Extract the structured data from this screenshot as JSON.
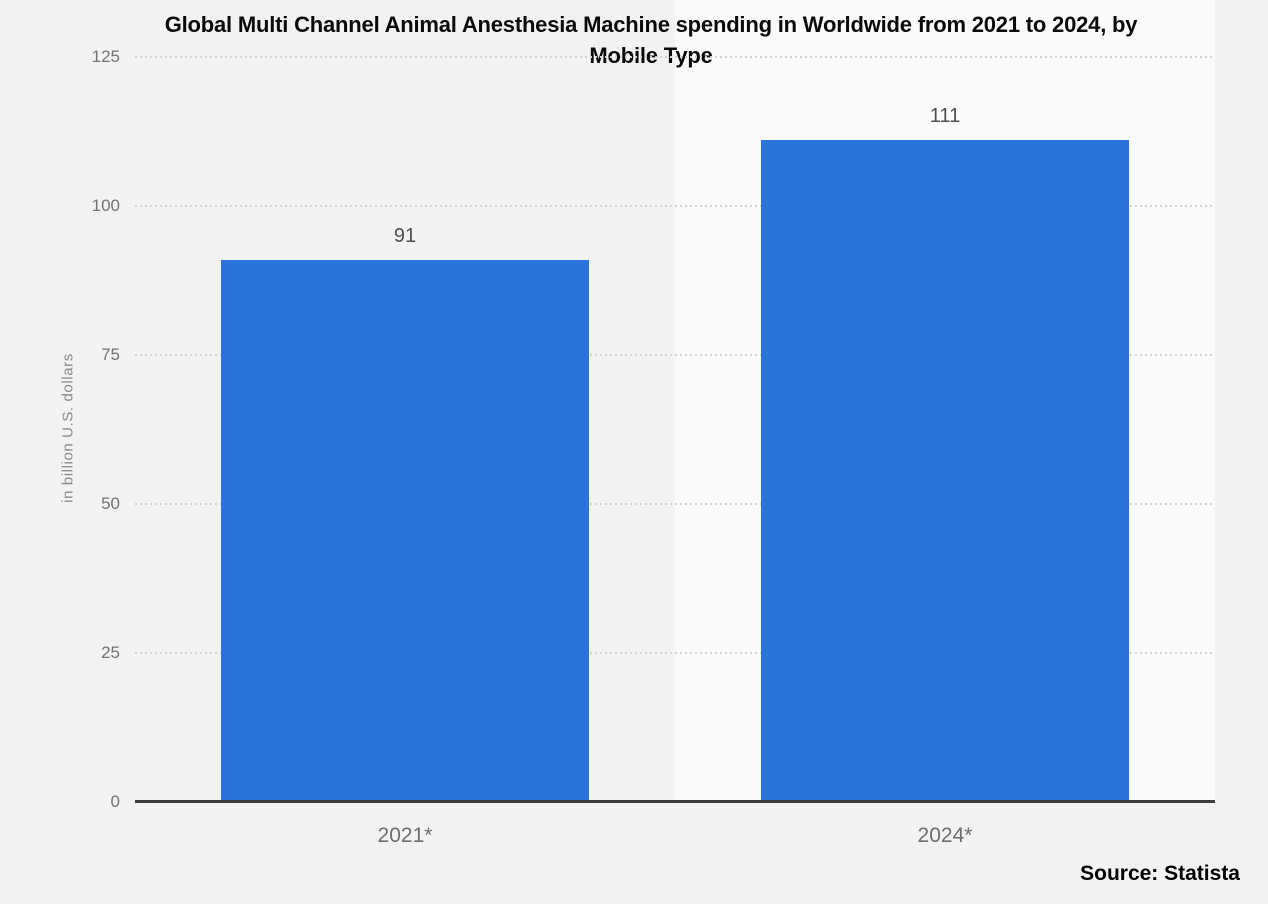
{
  "title": "Global Multi Channel Animal Anesthesia Machine spending in Worldwide from 2021 to 2024, by Mobile Type",
  "source_label": "Source: Statista",
  "colors": {
    "page_background": "#f2f2f2",
    "highlight_band": "#fafafa",
    "bar": "#2a73d8",
    "baseline": "#3c3c3c",
    "gridline": "#d2d2d2"
  },
  "chart_data": {
    "type": "bar",
    "title": "Global Multi Channel Animal Anesthesia Machine spending in Worldwide from 2021 to 2024, by Mobile Type",
    "categories": [
      "2021*",
      "2024*"
    ],
    "values": [
      91,
      111
    ],
    "value_labels": [
      "91",
      "111"
    ],
    "xlabel": "",
    "ylabel": "in billion U.S. dollars",
    "ylim": [
      0,
      125
    ],
    "yticks": [
      0,
      25,
      50,
      75,
      100,
      125
    ],
    "grid": true,
    "gridline_style": "dotted",
    "legend": "none",
    "bar_color": "#2a73d8",
    "highlighted_category": "2024*"
  }
}
